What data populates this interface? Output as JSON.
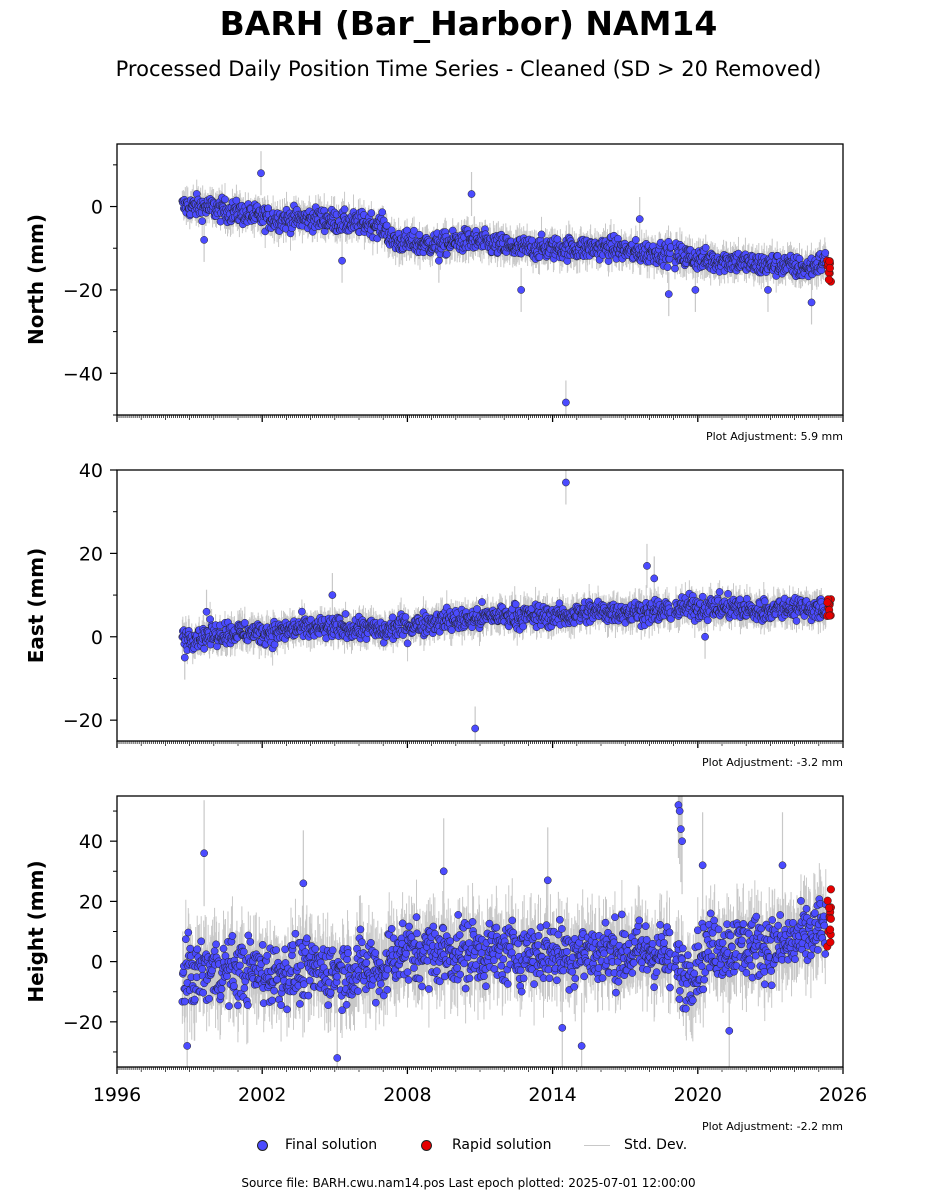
{
  "title": "BARH (Bar_Harbor) NAM14",
  "subtitle": "Processed Daily Position Time Series - Cleaned (SD > 20 Removed)",
  "legend": {
    "final": "Final solution",
    "rapid": "Rapid solution",
    "std": "Std. Dev."
  },
  "footer": "Source file: BARH.cwu.nam14.pos  Last epoch plotted: 2025-07-01 12:00:00",
  "colors": {
    "final": "#4b4bff",
    "rapid": "#e60000",
    "std": "#c8c8c8",
    "edge": "#222222"
  },
  "chart_data": [
    {
      "type": "scatter",
      "ylabel": "North (mm)",
      "adjustment": "Plot Adjustment: 5.9 mm",
      "xlim": [
        1996,
        2026
      ],
      "ylim": [
        -50,
        15
      ],
      "yticks": [
        0,
        -20,
        -40
      ],
      "ytick_labels": [
        "0",
        "−20",
        "−40"
      ],
      "show_xtick_labels": false,
      "series": [
        {
          "name": "Final solution",
          "x": [
            1998.7,
            1999.5,
            2000.5,
            2001.5,
            2002.5,
            2003.5,
            2004.5,
            2005.5,
            2006.5,
            2007.1,
            2007.3,
            2008.5,
            2009.5,
            2010.5,
            2011.5,
            2012.5,
            2013.5,
            2014.5,
            2015.5,
            2016.5,
            2017.5,
            2018.5,
            2019.5,
            2020.5,
            2021.5,
            2022.5,
            2023.5,
            2024.5,
            2025.3
          ],
          "y": [
            0,
            0,
            -1,
            -2,
            -3,
            -3,
            -3,
            -4,
            -4,
            -5,
            -8,
            -9,
            -9,
            -8,
            -9,
            -10,
            -10,
            -10,
            -10,
            -10,
            -11,
            -11,
            -12,
            -13,
            -13,
            -14,
            -14,
            -15,
            -13
          ]
        },
        {
          "name": "Outliers",
          "x": [
            2001.95,
            2010.65,
            2014.55,
            2009.3,
            2012.7,
            2017.6,
            2018.8,
            2022.9,
            2019.9,
            2024.7,
            2005.3,
            1999.6
          ],
          "y": [
            8,
            3,
            -47,
            -13,
            -20,
            -3,
            -21,
            -20,
            -20,
            -23,
            -13,
            -8
          ]
        },
        {
          "name": "Rapid solution",
          "x": [
            2025.35,
            2025.4,
            2025.45,
            2025.5
          ],
          "y": [
            -13,
            -14,
            -16,
            -18
          ]
        }
      ]
    },
    {
      "type": "scatter",
      "ylabel": "East (mm)",
      "adjustment": "Plot Adjustment: -3.2 mm",
      "xlim": [
        1996,
        2026
      ],
      "ylim": [
        -25,
        40
      ],
      "yticks": [
        40,
        20,
        0,
        -20
      ],
      "ytick_labels": [
        "40",
        "20",
        "0",
        "−20"
      ],
      "show_xtick_labels": false,
      "series": [
        {
          "name": "Final solution",
          "x": [
            1998.7,
            1999.5,
            2000.5,
            2001.5,
            2002.5,
            2003.5,
            2004.5,
            2005.5,
            2006.5,
            2007.1,
            2007.3,
            2008.5,
            2009.5,
            2010.5,
            2011.5,
            2012.5,
            2013.5,
            2014.5,
            2015.5,
            2016.5,
            2017.5,
            2018.5,
            2019.5,
            2020.5,
            2021.5,
            2022.5,
            2023.5,
            2024.5,
            2025.3
          ],
          "y": [
            0,
            0,
            1,
            1,
            1,
            2,
            2,
            2,
            2,
            1,
            2,
            3,
            4,
            4,
            5,
            5,
            5,
            5,
            6,
            6,
            6,
            6,
            7,
            7,
            7,
            6,
            7,
            7,
            6
          ]
        },
        {
          "name": "Outliers",
          "x": [
            2014.55,
            2010.8,
            2017.9,
            2018.2,
            2004.9,
            2020.3,
            1998.8,
            1999.7
          ],
          "y": [
            37,
            -22,
            17,
            14,
            10,
            0,
            -5,
            6
          ]
        },
        {
          "name": "Rapid solution",
          "x": [
            2025.35,
            2025.4,
            2025.45,
            2025.5
          ],
          "y": [
            5,
            7,
            8,
            9
          ]
        }
      ]
    },
    {
      "type": "scatter",
      "ylabel": "Height (mm)",
      "adjustment": "Plot Adjustment: -2.2 mm",
      "xlim": [
        1996,
        2026
      ],
      "ylim": [
        -35,
        55
      ],
      "yticks": [
        40,
        20,
        0,
        -20
      ],
      "ytick_labels": [
        "40",
        "20",
        "0",
        "−20"
      ],
      "xticks": [
        1996,
        2002,
        2008,
        2014,
        2020,
        2026
      ],
      "xtick_labels": [
        "1996",
        "2002",
        "2008",
        "2014",
        "2020",
        "2026"
      ],
      "show_xtick_labels": true,
      "series": [
        {
          "name": "Final solution",
          "x": [
            1998.7,
            1999.5,
            2000.5,
            2001.5,
            2002.5,
            2003.5,
            2004.5,
            2005.5,
            2006.5,
            2007.1,
            2007.3,
            2008.5,
            2009.5,
            2010.5,
            2011.5,
            2012.5,
            2013.5,
            2014.5,
            2015.5,
            2016.5,
            2017.5,
            2018.5,
            2019.5,
            2020.5,
            2021.5,
            2022.5,
            2023.5,
            2024.5,
            2025.3
          ],
          "y": [
            -5,
            -3,
            -3,
            -3,
            -4,
            -3,
            -3,
            -3,
            -2,
            -3,
            3,
            3,
            3,
            3,
            3,
            3,
            3,
            3,
            3,
            3,
            3,
            3,
            -5,
            5,
            5,
            5,
            5,
            8,
            12
          ]
        },
        {
          "name": "Outliers",
          "x": [
            1999.6,
            2003.7,
            2009.5,
            2013.8,
            2019.2,
            2019.25,
            2019.3,
            2019.35,
            2020.2,
            2014.4,
            2015.2,
            2005.1,
            1998.9,
            2021.3,
            2023.5
          ],
          "y": [
            36,
            26,
            30,
            27,
            52,
            50,
            44,
            40,
            32,
            -22,
            -28,
            -32,
            -28,
            -23,
            32
          ]
        },
        {
          "name": "Rapid solution",
          "x": [
            2025.35,
            2025.4,
            2025.45,
            2025.5,
            2025.5
          ],
          "y": [
            5,
            10,
            15,
            18,
            24
          ]
        }
      ]
    }
  ]
}
